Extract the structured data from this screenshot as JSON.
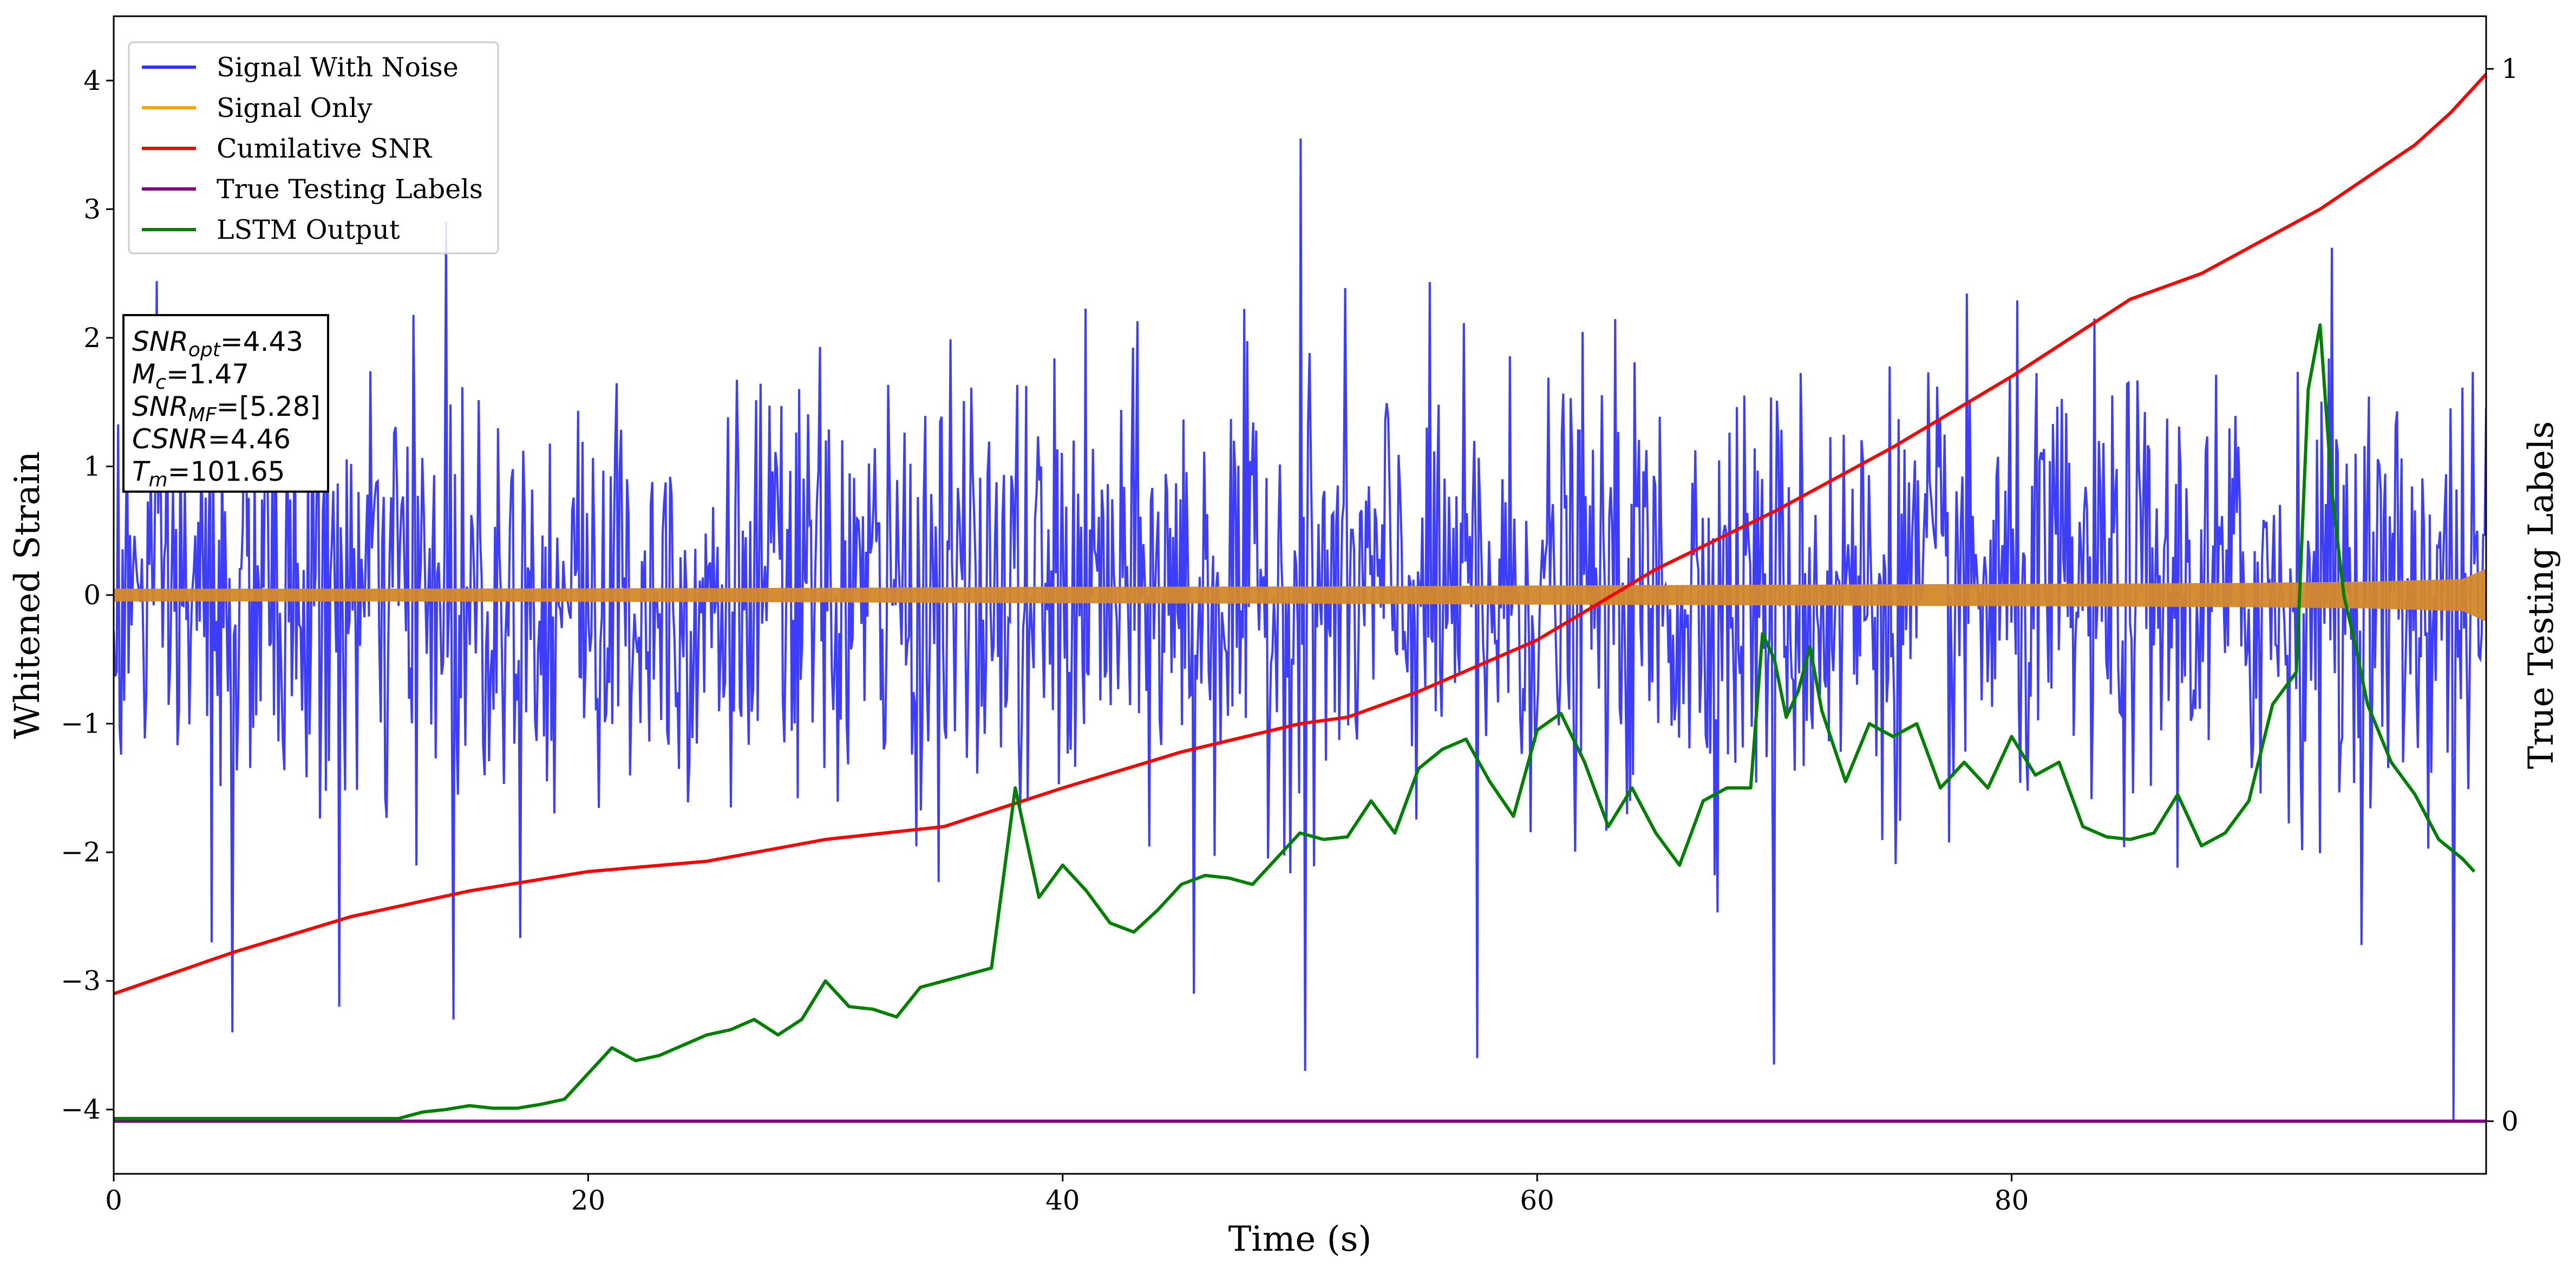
{
  "chart_data": {
    "type": "line",
    "xlabel": "Time (s)",
    "ylabel": "Whitened Strain",
    "y2label": "True Testing Labels",
    "xlim": [
      0,
      100
    ],
    "ylim": [
      -4.5,
      4.5
    ],
    "y2lim": [
      -0.05,
      1.05
    ],
    "xticks": [
      0,
      20,
      40,
      60,
      80
    ],
    "yticks": [
      4,
      3,
      2,
      1,
      0,
      -1,
      -2,
      -3,
      -4
    ],
    "y2ticks": [
      1,
      0
    ],
    "legend_position": "upper-left",
    "legend": [
      {
        "name": "Signal With Noise",
        "color": "#3333ff"
      },
      {
        "name": "Signal Only",
        "color": "#ffa500"
      },
      {
        "name": "Cumilative SNR",
        "color": "#ff0000"
      },
      {
        "name": "True Testing Labels",
        "color": "#800080"
      },
      {
        "name": "LSTM Output",
        "color": "#008000"
      }
    ],
    "annotation": [
      {
        "italic": "SNR",
        "sub": "opt",
        "rest": "=4.43"
      },
      {
        "italic": "M",
        "sub": "c",
        "rest": "=1.47"
      },
      {
        "italic": "SNR",
        "sub": "MF",
        "rest": "=[5.28]"
      },
      {
        "italic": "CSNR",
        "sub": "",
        "rest": "=4.46"
      },
      {
        "italic": "T",
        "sub": "m",
        "rest": "=101.65"
      }
    ],
    "series": [
      {
        "name": "Signal With Noise",
        "axis": "left",
        "color": "#3333ff",
        "noise_std": 0.82,
        "samples": 1600,
        "spikes": [
          [
            4.1,
            -2.7
          ],
          [
            5.0,
            -3.4
          ],
          [
            9.5,
            -3.2
          ],
          [
            14.0,
            2.9
          ],
          [
            14.3,
            -3.3
          ],
          [
            50.0,
            3.55
          ],
          [
            50.2,
            -3.7
          ],
          [
            57.5,
            -3.6
          ],
          [
            70.0,
            -3.65
          ],
          [
            93.5,
            2.7
          ],
          [
            98.6,
            -4.1
          ],
          [
            38.5,
            -1.6
          ],
          [
            45.5,
            -3.1
          ]
        ]
      },
      {
        "name": "Signal Only",
        "axis": "left",
        "color": "#ffa500",
        "x": [
          0,
          10,
          20,
          30,
          40,
          50,
          60,
          70,
          80,
          90,
          95,
          99,
          100
        ],
        "amplitude": [
          0.045,
          0.045,
          0.048,
          0.052,
          0.06,
          0.062,
          0.07,
          0.076,
          0.082,
          0.09,
          0.1,
          0.12,
          0.2
        ]
      },
      {
        "name": "Cumilative SNR",
        "axis": "left",
        "color": "#ff0000",
        "x": [
          0,
          5,
          10,
          15,
          20,
          25,
          30,
          35,
          40,
          45,
          50,
          52,
          55,
          60,
          65,
          70,
          75,
          80,
          85,
          88,
          90,
          93,
          95,
          97,
          98.5,
          100
        ],
        "y": [
          -3.1,
          -2.78,
          -2.5,
          -2.3,
          -2.15,
          -2.07,
          -1.9,
          -1.8,
          -1.5,
          -1.22,
          -1.0,
          -0.95,
          -0.75,
          -0.35,
          0.2,
          0.65,
          1.15,
          1.7,
          2.3,
          2.5,
          2.7,
          3.0,
          3.25,
          3.5,
          3.75,
          4.05
        ]
      },
      {
        "name": "True Testing Labels",
        "axis": "right",
        "color": "#800080",
        "x": [
          0,
          100
        ],
        "y": [
          0,
          0
        ]
      },
      {
        "name": "LSTM Output",
        "axis": "left",
        "color": "#008000",
        "x": [
          0,
          12,
          13,
          14,
          15,
          16,
          17,
          18,
          19,
          20,
          21,
          22,
          23,
          24,
          25,
          26,
          27,
          28,
          29,
          30,
          31,
          32,
          33,
          34,
          35,
          36,
          37,
          38,
          39,
          40,
          41,
          42,
          43,
          44,
          45,
          46,
          47,
          48,
          49,
          50,
          51,
          52,
          53,
          54,
          55,
          56,
          57,
          58,
          59,
          60,
          61,
          62,
          63,
          64,
          65,
          66,
          67,
          68,
          69,
          69.5,
          70,
          70.5,
          71,
          71.5,
          72,
          73,
          74,
          75,
          76,
          77,
          78,
          79,
          80,
          81,
          82,
          83,
          84,
          85,
          86,
          87,
          88,
          89,
          90,
          91,
          92,
          92.5,
          93,
          93.5,
          94,
          94.5,
          95,
          96,
          97,
          98,
          99,
          99.5
        ],
        "y": [
          -4.07,
          -4.07,
          -4.02,
          -4.0,
          -3.97,
          -3.99,
          -3.99,
          -3.96,
          -3.92,
          -3.72,
          -3.52,
          -3.62,
          -3.58,
          -3.5,
          -3.42,
          -3.38,
          -3.3,
          -3.42,
          -3.3,
          -3.0,
          -3.2,
          -3.22,
          -3.28,
          -3.05,
          -3.0,
          -2.95,
          -2.9,
          -1.5,
          -2.35,
          -2.1,
          -2.3,
          -2.55,
          -2.62,
          -2.45,
          -2.25,
          -2.18,
          -2.2,
          -2.25,
          -2.05,
          -1.85,
          -1.9,
          -1.88,
          -1.6,
          -1.85,
          -1.35,
          -1.2,
          -1.12,
          -1.45,
          -1.72,
          -1.05,
          -0.92,
          -1.3,
          -1.8,
          -1.5,
          -1.85,
          -2.1,
          -1.6,
          -1.5,
          -1.5,
          -0.3,
          -0.5,
          -0.95,
          -0.75,
          -0.4,
          -0.9,
          -1.45,
          -1.0,
          -1.1,
          -1.0,
          -1.5,
          -1.3,
          -1.5,
          -1.1,
          -1.4,
          -1.3,
          -1.8,
          -1.88,
          -1.9,
          -1.85,
          -1.55,
          -1.95,
          -1.85,
          -1.6,
          -0.85,
          -0.6,
          1.6,
          2.1,
          0.8,
          0.0,
          -0.4,
          -0.85,
          -1.3,
          -1.55,
          -1.9,
          -2.05,
          -2.15
        ]
      }
    ]
  }
}
